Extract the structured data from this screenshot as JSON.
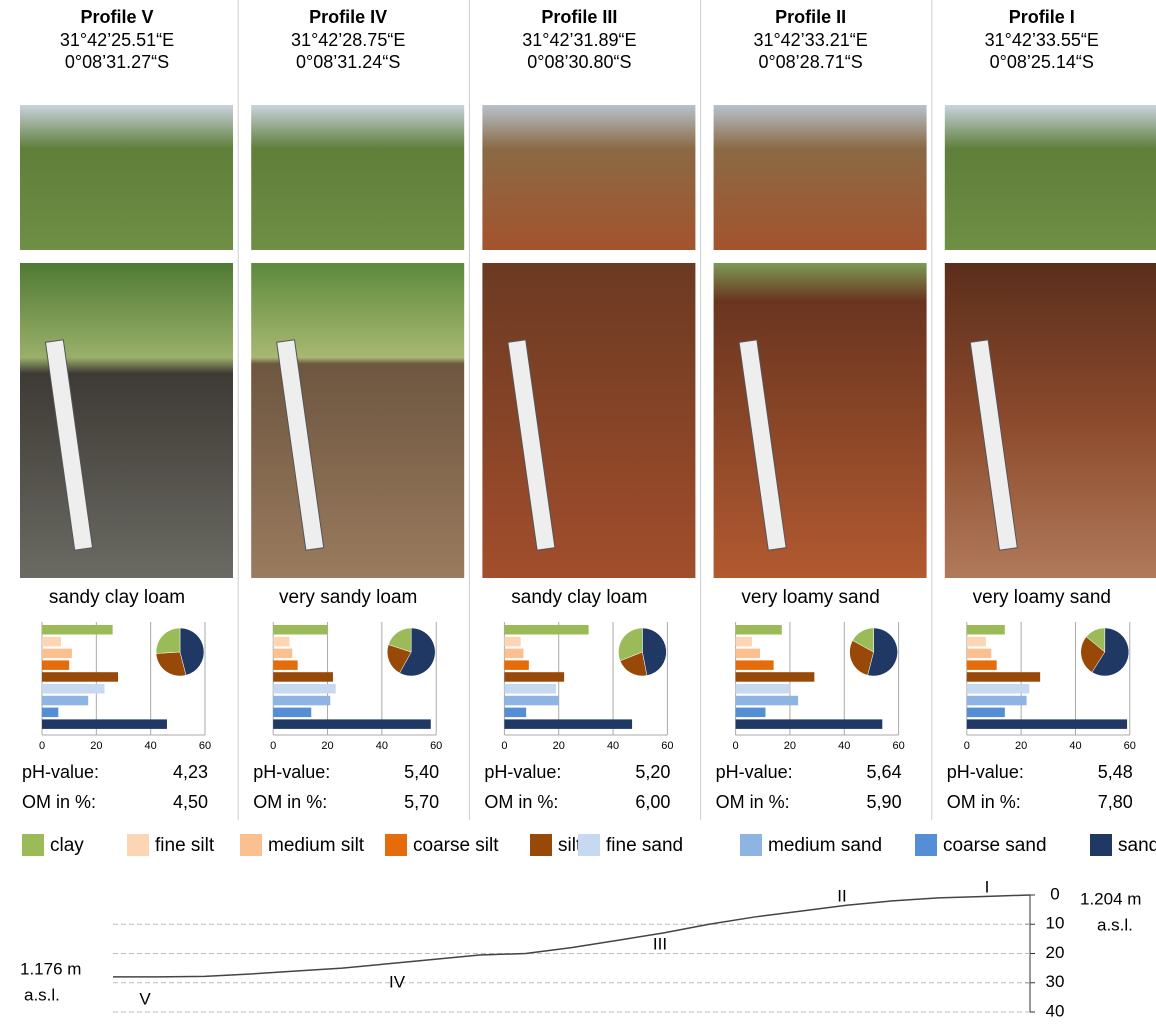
{
  "profiles": [
    {
      "title": "Profile V",
      "lon": "31°42’25.51“E",
      "lat": "0°08’31.27“S",
      "texture": "sandy clay loam",
      "ph": "4,23",
      "om": "4,50"
    },
    {
      "title": "Profile IV",
      "lon": "31°42’28.75“E",
      "lat": "0°08’31.24“S",
      "texture": "very sandy loam",
      "ph": "5,40",
      "om": "5,70"
    },
    {
      "title": "Profile III",
      "lon": "31°42’31.89“E",
      "lat": "0°08’30.80“S",
      "texture": "sandy clay loam",
      "ph": "5,20",
      "om": "6,00"
    },
    {
      "title": "Profile II",
      "lon": "31°42’33.21“E",
      "lat": "0°08’28.71“S",
      "texture": "very loamy sand",
      "ph": "5,64",
      "om": "5,90"
    },
    {
      "title": "Profile I",
      "lon": "31°42’33.55“E",
      "lat": "0°08’25.14“S",
      "texture": "very loamy sand",
      "ph": "5,48",
      "om": "7,80"
    }
  ],
  "ph_label": "pH-value:",
  "om_label": "OM in %:",
  "legend": [
    {
      "name": "clay",
      "color": "#9bbb59"
    },
    {
      "name": "fine silt",
      "color": "#fcd5b5"
    },
    {
      "name": "medium silt",
      "color": "#fac090"
    },
    {
      "name": "coarse silt",
      "color": "#e46c0a"
    },
    {
      "name": "silt",
      "color": "#984807"
    },
    {
      "name": "fine sand",
      "color": "#c6d9f1"
    },
    {
      "name": "medium sand",
      "color": "#8eb4e3"
    },
    {
      "name": "coarse sand",
      "color": "#558ed5"
    },
    {
      "name": "sand",
      "color": "#1f3864"
    }
  ],
  "chart_data": [
    {
      "type": "barh",
      "values": [
        26,
        7,
        11,
        10,
        28,
        23,
        17,
        6,
        46
      ],
      "xlim": [
        0,
        60
      ],
      "xticks": [
        0,
        20,
        40,
        60
      ]
    },
    {
      "type": "barh",
      "values": [
        20,
        6,
        7,
        9,
        22,
        23,
        21,
        14,
        58
      ],
      "xlim": [
        0,
        60
      ],
      "xticks": [
        0,
        20,
        40,
        60
      ]
    },
    {
      "type": "barh",
      "values": [
        31,
        6,
        7,
        9,
        22,
        19,
        20,
        8,
        47
      ],
      "xlim": [
        0,
        60
      ],
      "xticks": [
        0,
        20,
        40,
        60
      ]
    },
    {
      "type": "barh",
      "values": [
        17,
        6,
        9,
        14,
        29,
        20,
        23,
        11,
        54
      ],
      "xlim": [
        0,
        60
      ],
      "xticks": [
        0,
        20,
        40,
        60
      ]
    },
    {
      "type": "barh",
      "values": [
        14,
        7,
        9,
        11,
        27,
        23,
        22,
        14,
        59
      ],
      "xlim": [
        0,
        60
      ],
      "xticks": [
        0,
        20,
        40,
        60
      ]
    },
    {
      "type": "line",
      "values": [
        28,
        28,
        27.8,
        27,
        26,
        25,
        23.5,
        22,
        20.5,
        20,
        18,
        15.5,
        13,
        10,
        7.5,
        5.5,
        3.5,
        2,
        1,
        0.5,
        0
      ],
      "ylim": [
        0,
        40
      ],
      "y_inverted": true,
      "yticks": [
        0,
        10,
        20,
        30,
        40
      ],
      "color": "#444444",
      "grid": true,
      "left_label": [
        "1.176 m",
        "a.s.l."
      ],
      "right_label": [
        "1.204 m",
        "a.s.l."
      ],
      "markers": [
        "V",
        "IV",
        "III",
        "II",
        "I"
      ]
    }
  ]
}
